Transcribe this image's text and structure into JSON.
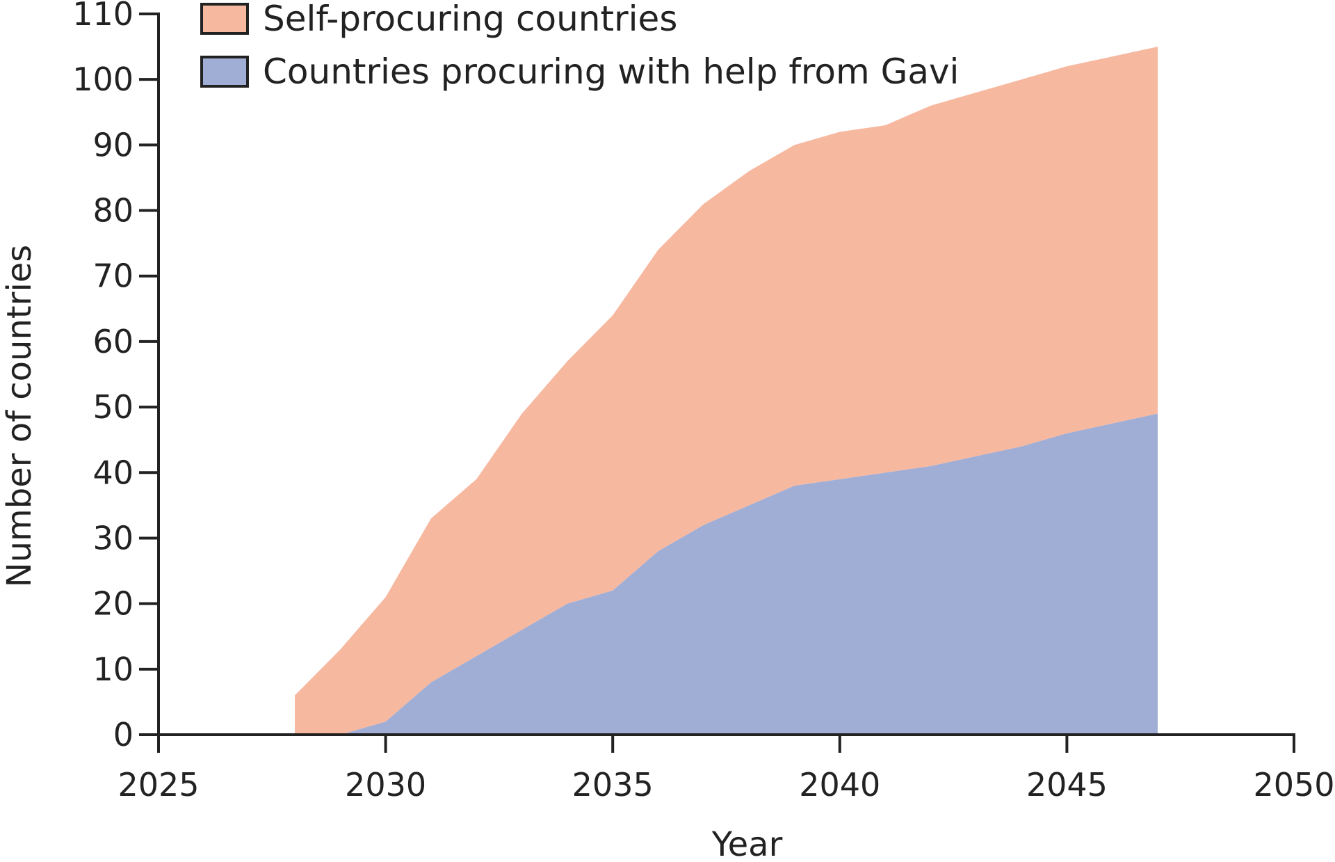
{
  "chart_data": {
    "type": "area",
    "stacked": true,
    "title": "",
    "xlabel": "Year",
    "ylabel": "Number of countries",
    "xlim": [
      2025,
      2050
    ],
    "ylim": [
      0,
      110
    ],
    "x_ticks": [
      2025,
      2030,
      2035,
      2040,
      2045,
      2050
    ],
    "y_ticks": [
      0,
      10,
      20,
      30,
      40,
      50,
      60,
      70,
      80,
      90,
      100,
      110
    ],
    "grid": false,
    "legend_position": "top-left",
    "x": [
      2028,
      2029,
      2030,
      2031,
      2032,
      2033,
      2034,
      2035,
      2036,
      2037,
      2038,
      2039,
      2040,
      2041,
      2042,
      2043,
      2044,
      2045,
      2046,
      2047
    ],
    "series": [
      {
        "name": "Countries procuring with help from Gavi",
        "color": "#a0aed6",
        "values": [
          0,
          0,
          2,
          8,
          12,
          16,
          20,
          22,
          28,
          32,
          35,
          38,
          39,
          40,
          41,
          42.5,
          44,
          46,
          47.5,
          49
        ]
      },
      {
        "name": "Self-procuring countries",
        "color": "#f7b8a0",
        "values": [
          6,
          13,
          19,
          25,
          27,
          33,
          37,
          42,
          46,
          49,
          51,
          52,
          53,
          53,
          55,
          55.5,
          56,
          56,
          56,
          56
        ]
      }
    ]
  }
}
